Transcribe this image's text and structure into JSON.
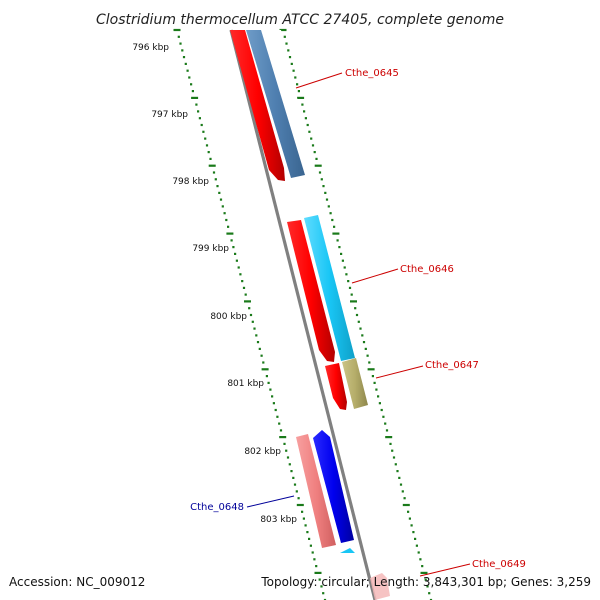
{
  "title": "Clostridium thermocellum ATCC 27405, complete genome",
  "footer": {
    "accession": "Accession: NC_009012",
    "summary": "Topology: circular; Length: 3,843,301 bp; Genes: 3,259"
  },
  "ticks": [
    "796 kbp",
    "797 kbp",
    "798 kbp",
    "799 kbp",
    "800 kbp",
    "801 kbp",
    "802 kbp",
    "803 kbp"
  ],
  "genes": [
    {
      "label": "Cthe_0645",
      "color": "#cc0000"
    },
    {
      "label": "Cthe_0646",
      "color": "#cc0000"
    },
    {
      "label": "Cthe_0647",
      "color": "#cc0000"
    },
    {
      "label": "Cthe_0648",
      "color": "#000099"
    },
    {
      "label": "Cthe_0649",
      "color": "#cc0000"
    }
  ],
  "colors": {
    "forward_cds": "#ff0000",
    "reverse_cds": "#0000ee",
    "reverse_cds_light": "#f08080",
    "cog_blue": "#4f7fb0",
    "cog_cyan": "#19c6f5",
    "cog_olive": "#b5ad6a",
    "backbone": "#808080",
    "ticks": "#1a7a1a"
  }
}
